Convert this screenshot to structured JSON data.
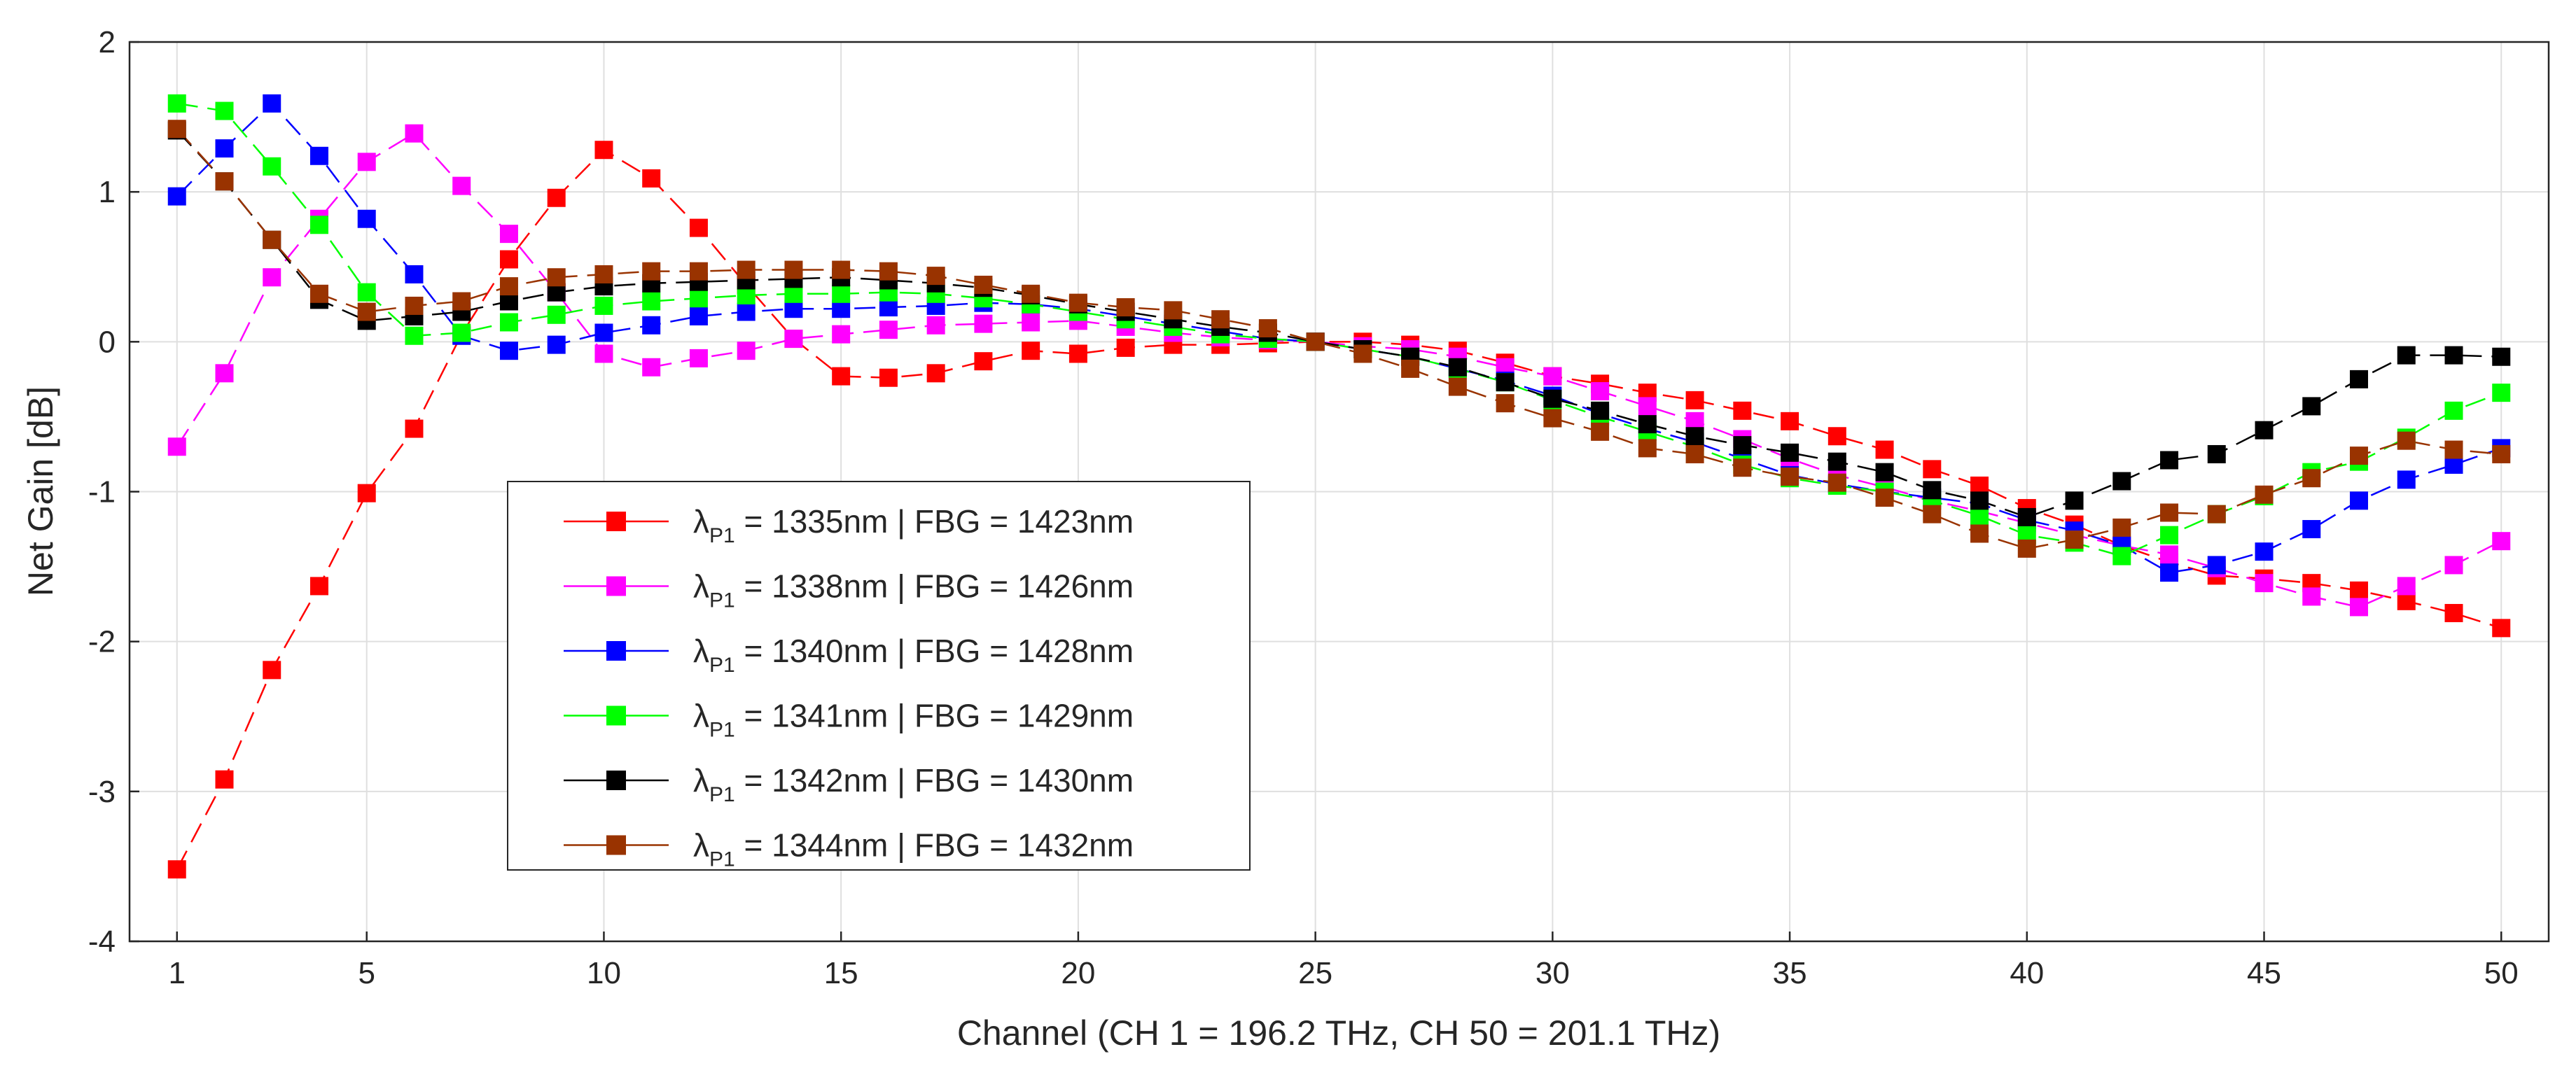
{
  "chart_data": {
    "type": "line",
    "title": "",
    "xlabel": "Channel (CH 1 = 196.2 THz, CH 50 = 201.1 THz)",
    "ylabel": "Net Gain [dB]",
    "xlim": [
      0,
      51
    ],
    "ylim": [
      -4,
      2
    ],
    "xticks": [
      1,
      5,
      10,
      15,
      20,
      25,
      30,
      35,
      40,
      45,
      50
    ],
    "yticks": [
      -4,
      -3,
      -2,
      -1,
      0,
      1,
      2
    ],
    "grid": true,
    "legend_position": "center-left",
    "x": [
      1,
      2,
      3,
      4,
      5,
      6,
      7,
      8,
      9,
      10,
      11,
      12,
      13,
      14,
      15,
      16,
      17,
      18,
      19,
      20,
      21,
      22,
      23,
      24,
      25,
      26,
      27,
      28,
      29,
      30,
      31,
      32,
      33,
      34,
      35,
      36,
      37,
      38,
      39,
      40,
      41,
      42,
      43,
      44,
      45,
      46,
      47,
      48,
      49,
      50
    ],
    "series": [
      {
        "name": "1335nm | FBG = 1423nm",
        "label_prefix": "λ",
        "label_sub": "P1",
        "label_rest": " = 1335nm | FBG = 1423nm",
        "color": "#ff0000",
        "values": [
          -3.52,
          -2.92,
          -2.19,
          -1.63,
          -1.01,
          -0.58,
          0.05,
          0.55,
          0.96,
          1.28,
          1.09,
          0.76,
          0.38,
          0.02,
          -0.23,
          -0.24,
          -0.21,
          -0.13,
          -0.06,
          -0.08,
          -0.04,
          -0.02,
          -0.02,
          -0.01,
          0.0,
          0.0,
          -0.02,
          -0.06,
          -0.14,
          -0.23,
          -0.28,
          -0.34,
          -0.39,
          -0.46,
          -0.53,
          -0.63,
          -0.72,
          -0.85,
          -0.96,
          -1.11,
          -1.22,
          -1.36,
          -1.47,
          -1.56,
          -1.58,
          -1.61,
          -1.66,
          -1.73,
          -1.81,
          -1.91
        ]
      },
      {
        "name": "1338nm | FBG = 1426nm",
        "label_prefix": "λ",
        "label_sub": "P1",
        "label_rest": " = 1338nm | FBG = 1426nm",
        "color": "#ff00ff",
        "values": [
          -0.7,
          -0.21,
          0.43,
          0.82,
          1.2,
          1.39,
          1.04,
          0.72,
          0.33,
          -0.08,
          -0.17,
          -0.11,
          -0.06,
          0.02,
          0.05,
          0.08,
          0.11,
          0.12,
          0.13,
          0.14,
          0.1,
          0.06,
          0.03,
          0.01,
          0.0,
          -0.03,
          -0.05,
          -0.1,
          -0.17,
          -0.23,
          -0.33,
          -0.43,
          -0.53,
          -0.65,
          -0.78,
          -0.89,
          -0.97,
          -1.06,
          -1.13,
          -1.21,
          -1.29,
          -1.36,
          -1.42,
          -1.51,
          -1.61,
          -1.7,
          -1.77,
          -1.63,
          -1.49,
          -1.33
        ]
      },
      {
        "name": "1340nm | FBG = 1428nm",
        "label_prefix": "λ",
        "label_sub": "P1",
        "label_rest": " = 1340nm | FBG = 1428nm",
        "color": "#0000ff",
        "values": [
          0.97,
          1.29,
          1.59,
          1.24,
          0.82,
          0.45,
          0.04,
          -0.06,
          -0.02,
          0.06,
          0.11,
          0.17,
          0.2,
          0.22,
          0.22,
          0.23,
          0.24,
          0.26,
          0.25,
          0.22,
          0.17,
          0.12,
          0.07,
          0.02,
          0.0,
          -0.05,
          -0.1,
          -0.18,
          -0.26,
          -0.36,
          -0.48,
          -0.58,
          -0.67,
          -0.78,
          -0.89,
          -0.95,
          -1.0,
          -1.04,
          -1.08,
          -1.19,
          -1.26,
          -1.36,
          -1.54,
          -1.49,
          -1.4,
          -1.25,
          -1.06,
          -0.92,
          -0.82,
          -0.71
        ]
      },
      {
        "name": "1341nm | FBG = 1429nm",
        "label_prefix": "λ",
        "label_sub": "P1",
        "label_rest": " = 1341nm | FBG = 1429nm",
        "color": "#00ff00",
        "values": [
          1.59,
          1.54,
          1.17,
          0.78,
          0.33,
          0.04,
          0.06,
          0.13,
          0.18,
          0.24,
          0.27,
          0.29,
          0.31,
          0.32,
          0.32,
          0.33,
          0.32,
          0.29,
          0.25,
          0.2,
          0.15,
          0.1,
          0.05,
          0.02,
          0.0,
          -0.05,
          -0.1,
          -0.18,
          -0.27,
          -0.39,
          -0.5,
          -0.6,
          -0.7,
          -0.82,
          -0.91,
          -0.96,
          -1.0,
          -1.06,
          -1.16,
          -1.29,
          -1.34,
          -1.43,
          -1.29,
          -1.15,
          -1.03,
          -0.87,
          -0.8,
          -0.64,
          -0.46,
          -0.34
        ]
      },
      {
        "name": "1342nm | FBG = 1430nm",
        "label_prefix": "λ",
        "label_sub": "P1",
        "label_rest": " = 1342nm | FBG = 1430nm",
        "color": "#000000",
        "values": [
          1.41,
          1.07,
          0.68,
          0.28,
          0.14,
          0.17,
          0.2,
          0.27,
          0.33,
          0.37,
          0.39,
          0.4,
          0.41,
          0.42,
          0.43,
          0.41,
          0.39,
          0.36,
          0.31,
          0.25,
          0.2,
          0.15,
          0.1,
          0.06,
          0.0,
          -0.05,
          -0.1,
          -0.17,
          -0.27,
          -0.38,
          -0.46,
          -0.55,
          -0.63,
          -0.69,
          -0.74,
          -0.8,
          -0.87,
          -0.99,
          -1.06,
          -1.17,
          -1.06,
          -0.93,
          -0.79,
          -0.75,
          -0.59,
          -0.43,
          -0.25,
          -0.09,
          -0.09,
          -0.1
        ]
      },
      {
        "name": "1344nm | FBG = 1432nm",
        "label_prefix": "λ",
        "label_sub": "P1",
        "label_rest": " = 1344nm | FBG = 1432nm",
        "color": "#993300",
        "values": [
          1.42,
          1.07,
          0.68,
          0.32,
          0.2,
          0.24,
          0.27,
          0.37,
          0.43,
          0.45,
          0.47,
          0.47,
          0.48,
          0.48,
          0.48,
          0.47,
          0.44,
          0.38,
          0.32,
          0.26,
          0.23,
          0.21,
          0.15,
          0.09,
          0.0,
          -0.08,
          -0.18,
          -0.3,
          -0.41,
          -0.51,
          -0.6,
          -0.71,
          -0.75,
          -0.84,
          -0.9,
          -0.94,
          -1.04,
          -1.15,
          -1.28,
          -1.38,
          -1.32,
          -1.24,
          -1.14,
          -1.15,
          -1.02,
          -0.91,
          -0.76,
          -0.66,
          -0.72,
          -0.75
        ]
      }
    ]
  }
}
